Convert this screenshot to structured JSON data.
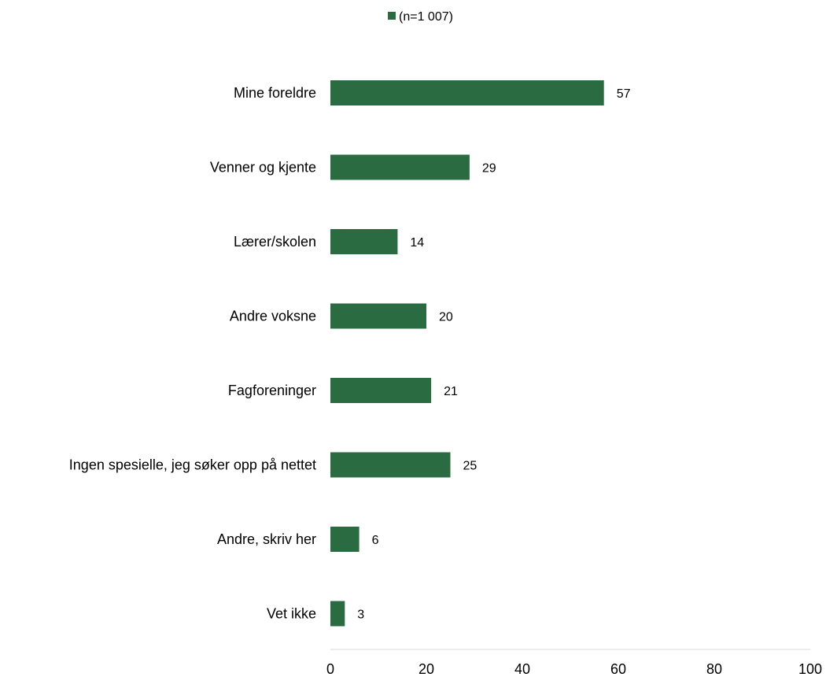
{
  "colors": {
    "bar": "#2a6b42",
    "axis": "#d9d9d9"
  },
  "legend": {
    "label": "(n=1 007)"
  },
  "chart_data": {
    "type": "bar",
    "orientation": "horizontal",
    "categories": [
      "Mine foreldre",
      "Venner og kjente",
      "Lærer/skolen",
      "Andre voksne",
      "Fagforeninger",
      "Ingen spesielle, jeg søker opp på nettet",
      "Andre, skriv her",
      "Vet ikke"
    ],
    "series": [
      {
        "name": "(n=1 007)",
        "values": [
          57,
          29,
          14,
          20,
          21,
          25,
          6,
          3
        ]
      }
    ],
    "xlim": [
      0,
      100
    ],
    "xticks": [
      0,
      20,
      40,
      60,
      80,
      100
    ],
    "grid": false,
    "legend_position": "top"
  }
}
